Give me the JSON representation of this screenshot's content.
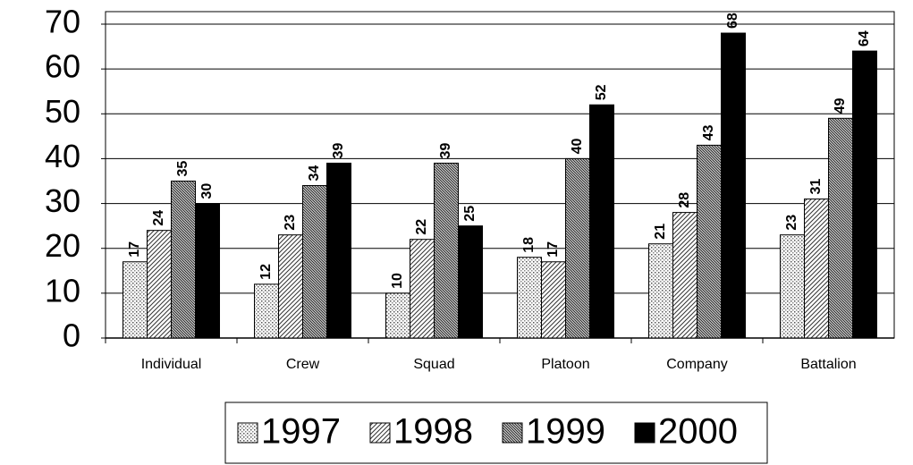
{
  "chart_data": {
    "type": "bar",
    "categories": [
      "Individual",
      "Crew",
      "Squad",
      "Platoon",
      "Company",
      "Battalion"
    ],
    "series": [
      {
        "name": "1997",
        "color": "#ffffff",
        "pattern": "dots",
        "values": [
          17,
          12,
          10,
          18,
          21,
          23
        ]
      },
      {
        "name": "1998",
        "color": "#ffffff",
        "pattern": "diagonal",
        "values": [
          24,
          23,
          22,
          17,
          28,
          31
        ]
      },
      {
        "name": "1999",
        "color": "#ffffff",
        "pattern": "dense-diagonal",
        "values": [
          35,
          34,
          39,
          40,
          43,
          49
        ]
      },
      {
        "name": "2000",
        "color": "#000000",
        "pattern": "solid",
        "values": [
          30,
          39,
          25,
          52,
          68,
          64
        ]
      }
    ],
    "ylim": [
      0,
      70
    ],
    "yticks": [
      0,
      10,
      20,
      30,
      40,
      50,
      60,
      70
    ],
    "grid": true,
    "legend": "bottom"
  }
}
